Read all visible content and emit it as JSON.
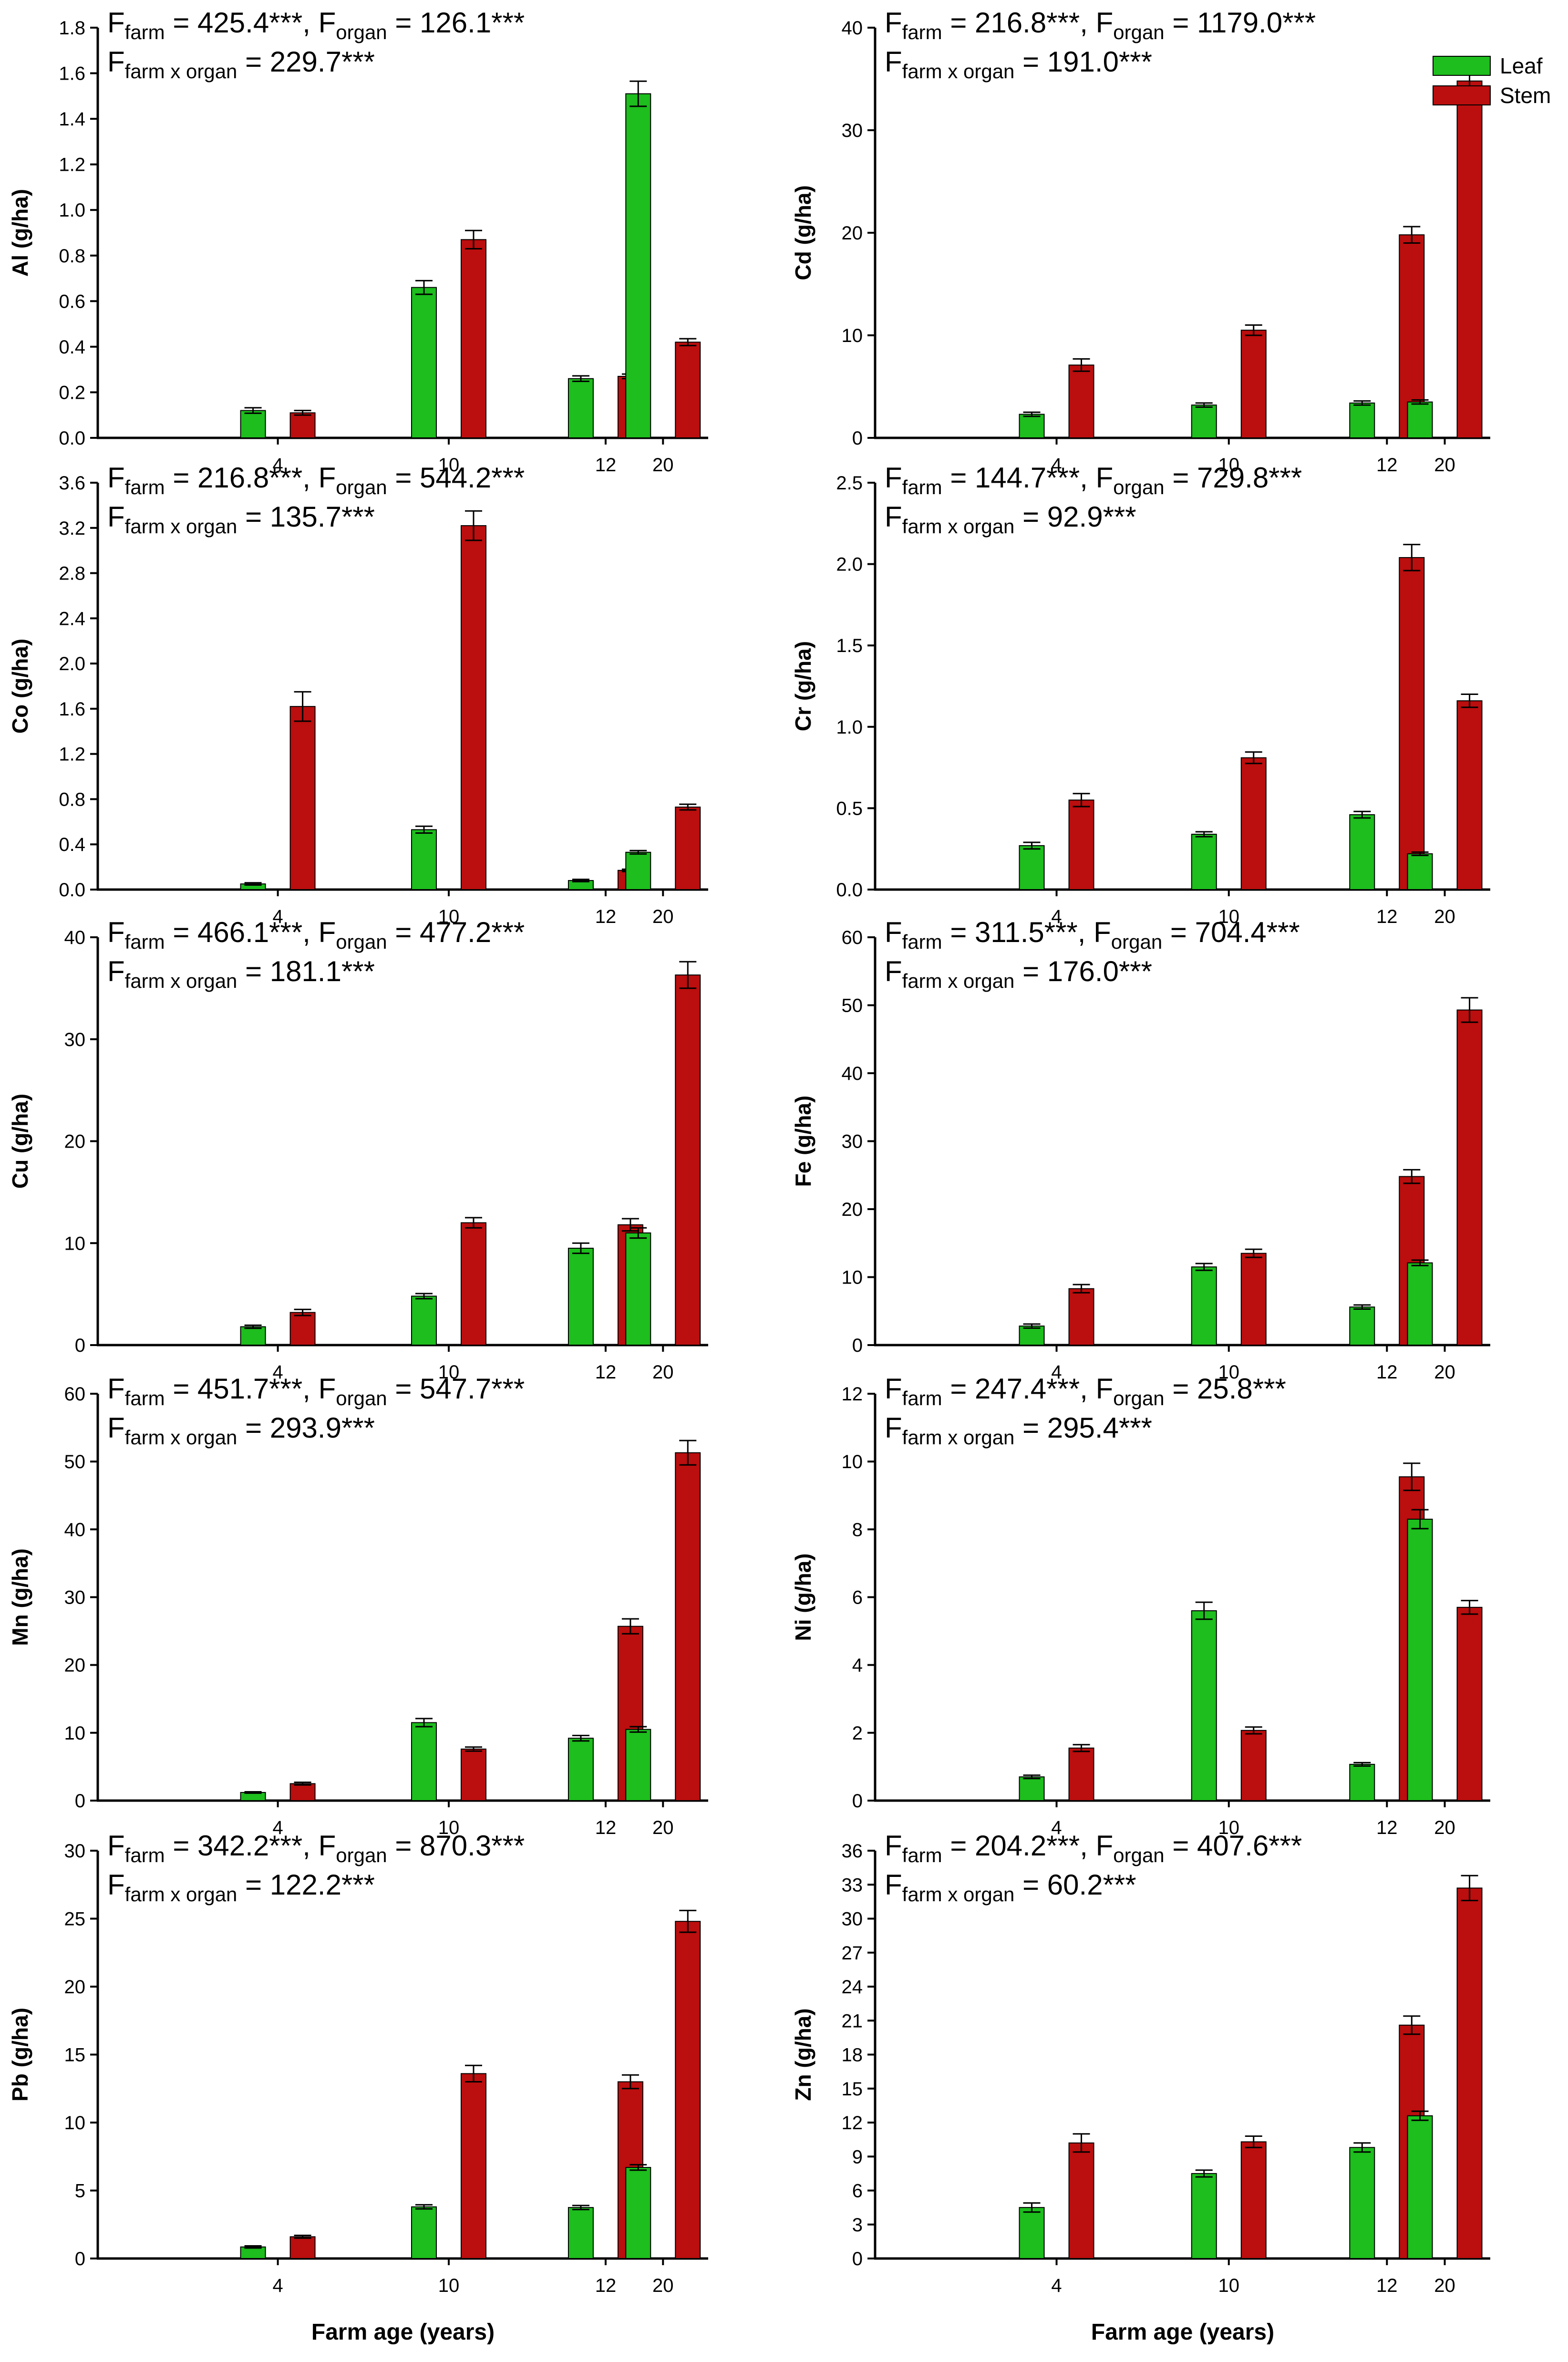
{
  "legend": [
    {
      "label": "Leaf",
      "color": "#1dbe1d"
    },
    {
      "label": "Stem",
      "color": "#bb0e0e"
    }
  ],
  "x_axis_label": "Farm age (years)",
  "chart_data": [
    {
      "type": "bar",
      "ylabel": "Al (g/ha)",
      "categories": [
        "4",
        "10",
        "12",
        "20"
      ],
      "ylim": [
        0,
        1.8
      ],
      "yticks": [
        "0.0",
        "0.2",
        "0.4",
        "0.6",
        "0.8",
        "1.0",
        "1.2",
        "1.4",
        "1.6",
        "1.8"
      ],
      "series": [
        {
          "name": "Leaf",
          "values": [
            0.12,
            0.66,
            0.26,
            1.51
          ],
          "errors": [
            0.012,
            0.03,
            0.012,
            0.055
          ]
        },
        {
          "name": "Stem",
          "values": [
            0.11,
            0.87,
            0.27,
            0.42
          ],
          "errors": [
            0.01,
            0.04,
            0.01,
            0.015
          ]
        }
      ],
      "stats": {
        "farm": "425.4***",
        "organ": "126.1***",
        "interaction": "229.7***"
      }
    },
    {
      "type": "bar",
      "ylabel": "Cd (g/ha)",
      "categories": [
        "4",
        "10",
        "12",
        "20"
      ],
      "ylim": [
        0,
        40
      ],
      "yticks": [
        "0",
        "10",
        "20",
        "30",
        "40"
      ],
      "series": [
        {
          "name": "Leaf",
          "values": [
            2.3,
            3.2,
            3.4,
            3.5
          ],
          "errors": [
            0.2,
            0.2,
            0.2,
            0.2
          ]
        },
        {
          "name": "Stem",
          "values": [
            7.1,
            10.5,
            19.8,
            34.8
          ],
          "errors": [
            0.6,
            0.5,
            0.8,
            1.3
          ]
        }
      ],
      "stats": {
        "farm": "216.8***",
        "organ": "1179.0***",
        "interaction": "191.0***"
      }
    },
    {
      "type": "bar",
      "ylabel": "Co (g/ha)",
      "categories": [
        "4",
        "10",
        "12",
        "20"
      ],
      "ylim": [
        0,
        3.6
      ],
      "yticks": [
        "0.0",
        "0.4",
        "0.8",
        "1.2",
        "1.6",
        "2.0",
        "2.4",
        "2.8",
        "3.2",
        "3.6"
      ],
      "series": [
        {
          "name": "Leaf",
          "values": [
            0.05,
            0.53,
            0.08,
            0.33
          ],
          "errors": [
            0.01,
            0.03,
            0.01,
            0.015
          ]
        },
        {
          "name": "Stem",
          "values": [
            1.62,
            3.22,
            0.17,
            0.73
          ],
          "errors": [
            0.13,
            0.13,
            0.01,
            0.025
          ]
        }
      ],
      "stats": {
        "farm": "216.8***",
        "organ": "544.2***",
        "interaction": "135.7***"
      }
    },
    {
      "type": "bar",
      "ylabel": "Cr (g/ha)",
      "categories": [
        "4",
        "10",
        "12",
        "20"
      ],
      "ylim": [
        0,
        2.5
      ],
      "yticks": [
        "0.0",
        "0.5",
        "1.0",
        "1.5",
        "2.0",
        "2.5"
      ],
      "series": [
        {
          "name": "Leaf",
          "values": [
            0.27,
            0.34,
            0.46,
            0.22
          ],
          "errors": [
            0.02,
            0.015,
            0.02,
            0.01
          ]
        },
        {
          "name": "Stem",
          "values": [
            0.55,
            0.81,
            2.04,
            1.16
          ],
          "errors": [
            0.04,
            0.035,
            0.08,
            0.04
          ]
        }
      ],
      "stats": {
        "farm": "144.7***",
        "organ": "729.8***",
        "interaction": "92.9***"
      }
    },
    {
      "type": "bar",
      "ylabel": "Cu (g/ha)",
      "categories": [
        "4",
        "10",
        "12",
        "20"
      ],
      "ylim": [
        0,
        40
      ],
      "yticks": [
        "0",
        "10",
        "20",
        "30",
        "40"
      ],
      "series": [
        {
          "name": "Leaf",
          "values": [
            1.8,
            4.8,
            9.5,
            11.0
          ],
          "errors": [
            0.15,
            0.25,
            0.5,
            0.5
          ]
        },
        {
          "name": "Stem",
          "values": [
            3.2,
            12.0,
            11.8,
            36.3
          ],
          "errors": [
            0.3,
            0.5,
            0.6,
            1.3
          ]
        }
      ],
      "stats": {
        "farm": "466.1***",
        "organ": "477.2***",
        "interaction": "181.1***"
      }
    },
    {
      "type": "bar",
      "ylabel": "Fe (g/ha)",
      "categories": [
        "4",
        "10",
        "12",
        "20"
      ],
      "ylim": [
        0,
        60
      ],
      "yticks": [
        "0",
        "10",
        "20",
        "30",
        "40",
        "50",
        "60"
      ],
      "series": [
        {
          "name": "Leaf",
          "values": [
            2.8,
            11.5,
            5.6,
            12.1
          ],
          "errors": [
            0.3,
            0.5,
            0.3,
            0.4
          ]
        },
        {
          "name": "Stem",
          "values": [
            8.3,
            13.5,
            24.8,
            49.3
          ],
          "errors": [
            0.6,
            0.6,
            1.0,
            1.8
          ]
        }
      ],
      "stats": {
        "farm": "311.5***",
        "organ": "704.4***",
        "interaction": "176.0***"
      }
    },
    {
      "type": "bar",
      "ylabel": "Mn (g/ha)",
      "categories": [
        "4",
        "10",
        "12",
        "20"
      ],
      "ylim": [
        0,
        60
      ],
      "yticks": [
        "0",
        "10",
        "20",
        "30",
        "40",
        "50",
        "60"
      ],
      "series": [
        {
          "name": "Leaf",
          "values": [
            1.2,
            11.5,
            9.2,
            10.5
          ],
          "errors": [
            0.1,
            0.6,
            0.4,
            0.4
          ]
        },
        {
          "name": "Stem",
          "values": [
            2.5,
            7.6,
            25.7,
            51.3
          ],
          "errors": [
            0.2,
            0.3,
            1.1,
            1.8
          ]
        }
      ],
      "stats": {
        "farm": "451.7***",
        "organ": "547.7***",
        "interaction": "293.9***"
      }
    },
    {
      "type": "bar",
      "ylabel": "Ni (g/ha)",
      "categories": [
        "4",
        "10",
        "12",
        "20"
      ],
      "ylim": [
        0,
        12
      ],
      "yticks": [
        "0",
        "2",
        "4",
        "6",
        "8",
        "10",
        "12"
      ],
      "series": [
        {
          "name": "Leaf",
          "values": [
            0.7,
            5.6,
            1.07,
            8.3
          ],
          "errors": [
            0.05,
            0.25,
            0.05,
            0.28
          ]
        },
        {
          "name": "Stem",
          "values": [
            1.55,
            2.07,
            9.55,
            5.7
          ],
          "errors": [
            0.1,
            0.1,
            0.4,
            0.2
          ]
        }
      ],
      "stats": {
        "farm": "247.4***",
        "organ": "25.8***",
        "interaction": "295.4***"
      }
    },
    {
      "type": "bar",
      "ylabel": "Pb (g/ha)",
      "categories": [
        "4",
        "10",
        "12",
        "20"
      ],
      "ylim": [
        0,
        30
      ],
      "yticks": [
        "0",
        "5",
        "10",
        "15",
        "20",
        "25",
        "30"
      ],
      "series": [
        {
          "name": "Leaf",
          "values": [
            0.85,
            3.8,
            3.75,
            6.7
          ],
          "errors": [
            0.08,
            0.15,
            0.15,
            0.2
          ]
        },
        {
          "name": "Stem",
          "values": [
            1.6,
            13.6,
            13.0,
            24.8
          ],
          "errors": [
            0.1,
            0.6,
            0.5,
            0.8
          ]
        }
      ],
      "stats": {
        "farm": "342.2***",
        "organ": "870.3***",
        "interaction": "122.2***"
      }
    },
    {
      "type": "bar",
      "ylabel": "Zn (g/ha)",
      "categories": [
        "4",
        "10",
        "12",
        "20"
      ],
      "ylim": [
        0,
        36
      ],
      "yticks": [
        "0",
        "3",
        "6",
        "9",
        "12",
        "15",
        "18",
        "21",
        "24",
        "27",
        "30",
        "33",
        "36"
      ],
      "series": [
        {
          "name": "Leaf",
          "values": [
            4.5,
            7.5,
            9.8,
            12.6
          ],
          "errors": [
            0.4,
            0.3,
            0.4,
            0.4
          ]
        },
        {
          "name": "Stem",
          "values": [
            10.2,
            10.3,
            20.6,
            32.7
          ],
          "errors": [
            0.8,
            0.5,
            0.8,
            1.1
          ]
        }
      ],
      "stats": {
        "farm": "204.2***",
        "organ": "407.6***",
        "interaction": "60.2***"
      }
    }
  ]
}
